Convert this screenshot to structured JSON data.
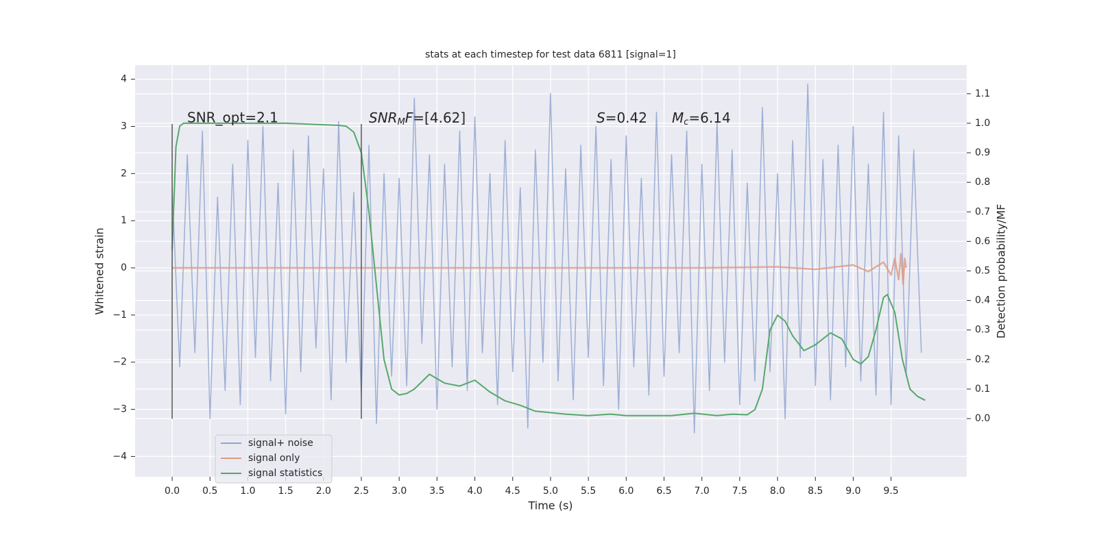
{
  "chart_data": {
    "type": "line",
    "title": "stats at each timestep for test data 6811 [signal=1]",
    "xlabel": "Time (s)",
    "ylabel": "Whitened strain",
    "y2label": "Detection probability/MF",
    "xlim": [
      -0.49,
      10.5
    ],
    "ylim": [
      -4.43,
      4.3
    ],
    "y2lim": [
      -0.197,
      1.197
    ],
    "xticks": [
      {
        "value": 0,
        "label": "0.0"
      },
      {
        "value": 0.5,
        "label": "0.5"
      },
      {
        "value": 1,
        "label": "1.0"
      },
      {
        "value": 1.5,
        "label": "1.5"
      },
      {
        "value": 2,
        "label": "2.0"
      },
      {
        "value": 2.5,
        "label": "2.5"
      },
      {
        "value": 3,
        "label": "3.0"
      },
      {
        "value": 3.5,
        "label": "3.5"
      },
      {
        "value": 4,
        "label": "4.0"
      },
      {
        "value": 4.5,
        "label": "4.5"
      },
      {
        "value": 5,
        "label": "5.0"
      },
      {
        "value": 5.5,
        "label": "5.5"
      },
      {
        "value": 6,
        "label": "6.0"
      },
      {
        "value": 6.5,
        "label": "6.5"
      },
      {
        "value": 7,
        "label": "7.0"
      },
      {
        "value": 7.5,
        "label": "7.5"
      },
      {
        "value": 8,
        "label": "8.0"
      },
      {
        "value": 8.5,
        "label": "8.5"
      },
      {
        "value": 9,
        "label": "9.0"
      },
      {
        "value": 9.5,
        "label": "9.5"
      }
    ],
    "yticks": [
      {
        "value": -4,
        "label": "−4"
      },
      {
        "value": -3,
        "label": "−3"
      },
      {
        "value": -2,
        "label": "−2"
      },
      {
        "value": -1,
        "label": "−1"
      },
      0,
      1,
      2,
      3,
      4
    ],
    "y2ticks": [
      {
        "value": 0,
        "label": "0.0"
      },
      {
        "value": 0.1,
        "label": "0.1"
      },
      {
        "value": 0.2,
        "label": "0.2"
      },
      {
        "value": 0.3,
        "label": "0.3"
      },
      {
        "value": 0.4,
        "label": "0.4"
      },
      {
        "value": 0.5,
        "label": "0.5"
      },
      {
        "value": 0.6,
        "label": "0.6"
      },
      {
        "value": 0.7,
        "label": "0.7"
      },
      {
        "value": 0.8,
        "label": "0.8"
      },
      {
        "value": 0.9,
        "label": "0.9"
      },
      {
        "value": 1,
        "label": "1.0"
      },
      {
        "value": 1.1,
        "label": "1.1"
      }
    ],
    "grid": true,
    "legend": "lower left",
    "series": [
      {
        "name": "signal+ noise",
        "color": "#8fa5cf",
        "x": [
          0,
          0.1,
          0.2,
          0.3,
          0.4,
          0.5,
          0.6,
          0.7,
          0.8,
          0.9,
          1,
          1.1,
          1.2,
          1.3,
          1.4,
          1.5,
          1.6,
          1.7,
          1.8,
          1.9,
          2,
          2.1,
          2.2,
          2.3,
          2.4,
          2.5,
          2.6,
          2.7,
          2.8,
          2.9,
          3,
          3.1,
          3.2,
          3.3,
          3.4,
          3.5,
          3.6,
          3.7,
          3.8,
          3.9,
          4,
          4.1,
          4.2,
          4.3,
          4.4,
          4.5,
          4.6,
          4.7,
          4.8,
          4.9,
          5,
          5.1,
          5.2,
          5.3,
          5.4,
          5.5,
          5.6,
          5.7,
          5.8,
          5.9,
          6,
          6.1,
          6.2,
          6.3,
          6.4,
          6.5,
          6.6,
          6.7,
          6.8,
          6.9,
          7,
          7.1,
          7.2,
          7.3,
          7.4,
          7.5,
          7.6,
          7.7,
          7.8,
          7.9,
          8,
          8.1,
          8.2,
          8.3,
          8.4,
          8.5,
          8.6,
          8.7,
          8.8,
          8.9,
          9,
          9.1,
          9.2,
          9.3,
          9.4,
          9.5,
          9.6,
          9.7,
          9.8,
          9.9
        ],
        "values": [
          1.7,
          -2.1,
          2.4,
          -1.8,
          2.9,
          -3.2,
          1.5,
          -2.6,
          2.2,
          -2.9,
          2.7,
          -1.9,
          3.0,
          -2.4,
          1.8,
          -3.1,
          2.5,
          -2.2,
          2.8,
          -1.7,
          2.1,
          -2.8,
          3.1,
          -2.0,
          1.6,
          -2.7,
          2.6,
          -3.3,
          2.0,
          -2.3,
          1.9,
          -2.5,
          3.6,
          -1.6,
          2.4,
          -3.0,
          2.2,
          -2.1,
          2.9,
          -2.6,
          3.2,
          -1.8,
          2.0,
          -2.9,
          2.7,
          -2.2,
          1.7,
          -3.4,
          2.5,
          -2.0,
          3.7,
          -2.4,
          2.1,
          -2.8,
          2.6,
          -1.9,
          3.0,
          -2.5,
          2.3,
          -3.0,
          2.8,
          -2.1,
          1.9,
          -2.7,
          3.3,
          -2.3,
          2.4,
          -1.8,
          2.9,
          -3.5,
          2.2,
          -2.6,
          3.1,
          -2.0,
          2.5,
          -2.9,
          1.8,
          -2.4,
          3.4,
          -2.2,
          2.0,
          -3.2,
          2.7,
          -1.9,
          3.9,
          -2.5,
          2.3,
          -2.8,
          2.6,
          -2.1,
          3.0,
          -2.4,
          2.2,
          -2.7,
          3.3,
          -2.9,
          2.8,
          -2.3,
          2.5,
          -1.8
        ]
      },
      {
        "name": "signal only",
        "color": "#dd9a82",
        "x": [
          0,
          1,
          2,
          3,
          4,
          5,
          6,
          7,
          8,
          8.5,
          9,
          9.2,
          9.4,
          9.5,
          9.55,
          9.6,
          9.63,
          9.66,
          9.68,
          9.7
        ],
        "values": [
          0,
          0,
          0,
          0,
          0,
          0,
          0,
          0,
          0.02,
          -0.03,
          0.06,
          -0.08,
          0.12,
          -0.15,
          0.2,
          -0.25,
          0.3,
          -0.35,
          0.2,
          0
        ]
      },
      {
        "name": "signal statistics",
        "color": "#55a868",
        "axis": "y2",
        "x": [
          0,
          0.05,
          0.1,
          0.15,
          0.2,
          0.5,
          1,
          1.5,
          2,
          2.2,
          2.3,
          2.4,
          2.5,
          2.6,
          2.7,
          2.8,
          2.9,
          3.0,
          3.1,
          3.2,
          3.4,
          3.6,
          3.8,
          4.0,
          4.2,
          4.4,
          4.6,
          4.8,
          5.0,
          5.2,
          5.5,
          5.8,
          6.0,
          6.3,
          6.6,
          6.9,
          7.2,
          7.4,
          7.6,
          7.7,
          7.8,
          7.9,
          8.0,
          8.1,
          8.2,
          8.35,
          8.5,
          8.7,
          8.85,
          9.0,
          9.1,
          9.2,
          9.3,
          9.4,
          9.45,
          9.55,
          9.65,
          9.75,
          9.85,
          9.95
        ],
        "values": [
          0.57,
          0.92,
          0.99,
          1.0,
          1.0,
          1.0,
          1.0,
          1.0,
          0.995,
          0.993,
          0.99,
          0.97,
          0.9,
          0.7,
          0.45,
          0.2,
          0.1,
          0.08,
          0.085,
          0.1,
          0.15,
          0.12,
          0.11,
          0.13,
          0.09,
          0.06,
          0.045,
          0.025,
          0.02,
          0.015,
          0.01,
          0.015,
          0.01,
          0.01,
          0.01,
          0.018,
          0.01,
          0.015,
          0.013,
          0.03,
          0.1,
          0.3,
          0.35,
          0.33,
          0.28,
          0.23,
          0.25,
          0.29,
          0.27,
          0.2,
          0.185,
          0.21,
          0.3,
          0.41,
          0.42,
          0.36,
          0.2,
          0.1,
          0.075,
          0.062
        ]
      }
    ],
    "vlines": [
      {
        "x": 0,
        "ymin": -3.2,
        "ymax": 3.05
      },
      {
        "x": 2.5,
        "ymin": -3.2,
        "ymax": 3.05
      }
    ],
    "annotations": [
      "SNR_opt=2.1",
      {
        "base": "SNR",
        "sub": "M",
        "tail": "F",
        "rest": "=[4.62]"
      },
      {
        "base": "S",
        "rest": "=0.42"
      },
      {
        "base": "M",
        "sub": "c",
        "rest": "=6.14"
      }
    ]
  }
}
